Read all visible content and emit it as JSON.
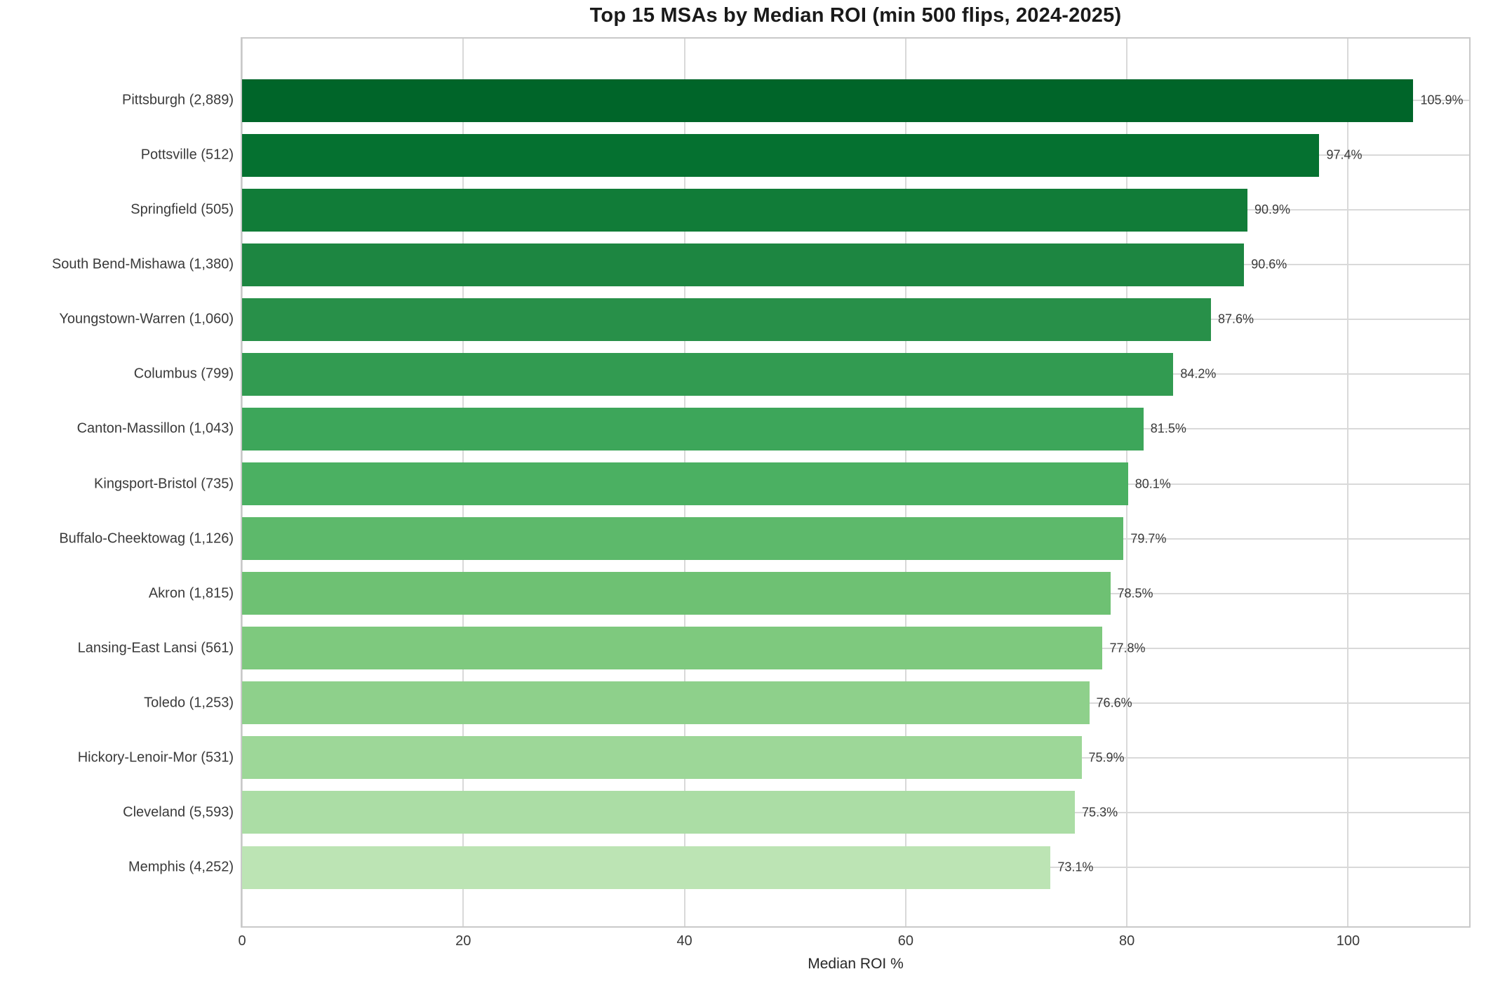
{
  "chart_data": {
    "type": "bar",
    "orientation": "horizontal",
    "title": "Top 15 MSAs by Median ROI (min 500 flips, 2024-2025)",
    "xlabel": "Median ROI %",
    "ylabel": "",
    "categories": [
      "Pittsburgh (2,889)",
      "Pottsville (512)",
      "Springfield (505)",
      "South Bend-Mishawa (1,380)",
      "Youngstown-Warren (1,060)",
      "Columbus (799)",
      "Canton-Massillon (1,043)",
      "Kingsport-Bristol (735)",
      "Buffalo-Cheektowag (1,126)",
      "Akron (1,815)",
      "Lansing-East Lansi (561)",
      "Toledo (1,253)",
      "Hickory-Lenoir-Mor (531)",
      "Cleveland (5,593)",
      "Memphis (4,252)"
    ],
    "values": [
      105.9,
      97.4,
      90.9,
      90.6,
      87.6,
      84.2,
      81.5,
      80.1,
      79.7,
      78.5,
      77.8,
      76.6,
      75.9,
      75.3,
      73.1
    ],
    "value_labels": [
      "105.9%",
      "97.4%",
      "90.9%",
      "90.6%",
      "87.6%",
      "84.2%",
      "81.5%",
      "80.1%",
      "79.7%",
      "78.5%",
      "77.8%",
      "76.6%",
      "75.9%",
      "75.3%",
      "73.1%"
    ],
    "bar_colors": [
      "#006529",
      "#057130",
      "#117c38",
      "#1d8641",
      "#289049",
      "#329b51",
      "#3da65a",
      "#4bb062",
      "#5db96b",
      "#6ec173",
      "#7ec97e",
      "#8ed08b",
      "#9dd798",
      "#abdda5",
      "#bce4b4"
    ],
    "x_ticks": [
      0,
      20,
      40,
      60,
      80,
      100
    ],
    "xlim": [
      0,
      111.2
    ],
    "grid": true,
    "legend": "none",
    "grid_color": "#d9d9d9",
    "spine_color": "#c9c9c9",
    "background": "#ffffff",
    "title_color": "#1a1a1a",
    "tick_color": "#3a3a3a"
  }
}
